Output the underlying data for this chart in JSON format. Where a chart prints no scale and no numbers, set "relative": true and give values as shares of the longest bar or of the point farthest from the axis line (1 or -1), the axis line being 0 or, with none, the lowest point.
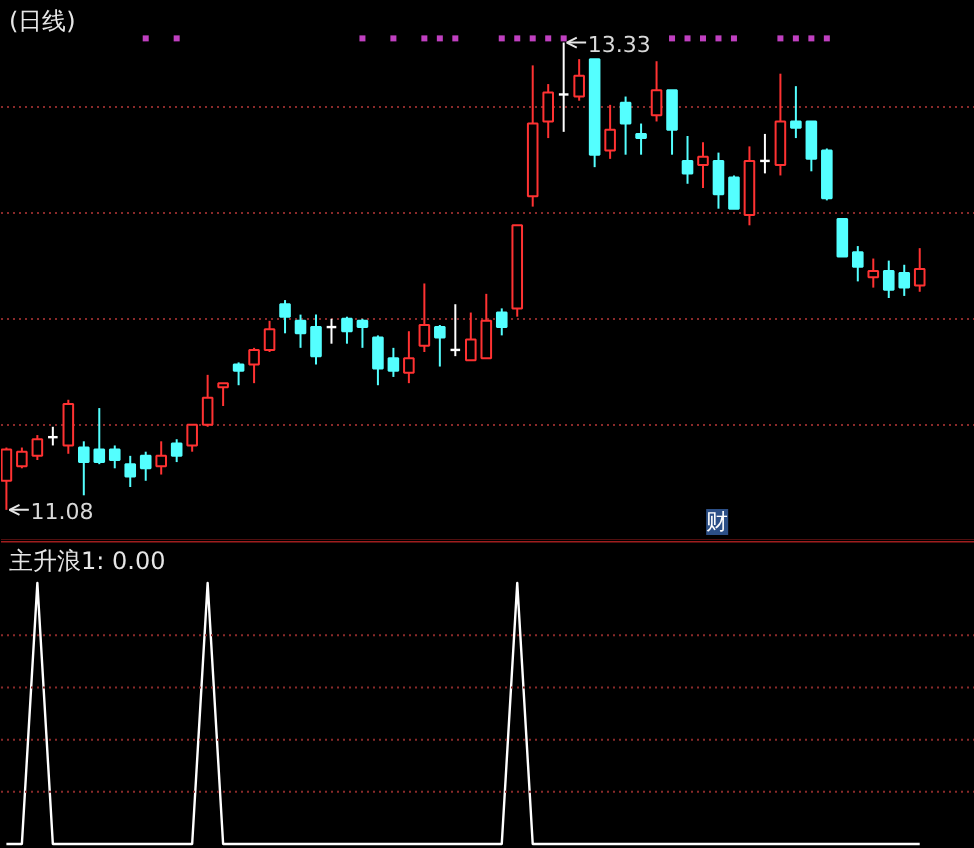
{
  "chart_data": [
    {
      "type": "candlestick",
      "title": "(日线)",
      "categories": [
        null,
        null,
        null,
        null,
        null,
        null,
        null,
        null,
        null,
        null,
        null,
        null,
        null,
        null,
        null,
        null,
        null,
        null,
        null,
        null,
        null,
        null,
        null,
        null,
        null,
        null,
        null,
        null,
        null,
        null,
        null,
        null,
        null,
        null,
        null,
        null,
        null,
        null,
        null,
        null,
        null,
        null,
        null,
        null,
        null,
        null,
        null,
        null,
        null,
        null,
        null,
        null,
        null,
        null,
        null,
        null,
        null,
        null,
        null,
        null
      ],
      "ohlc": [
        [
          11.22,
          11.38,
          11.08,
          11.37
        ],
        [
          11.29,
          11.38,
          11.28,
          11.36
        ],
        [
          11.34,
          11.44,
          11.32,
          11.42
        ],
        [
          11.43,
          11.48,
          11.39,
          11.43
        ],
        [
          11.39,
          11.61,
          11.35,
          11.59
        ],
        [
          11.38,
          11.41,
          11.15,
          11.31
        ],
        [
          11.37,
          11.57,
          11.3,
          11.31
        ],
        [
          11.37,
          11.39,
          11.28,
          11.32
        ],
        [
          11.3,
          11.34,
          11.19,
          11.24
        ],
        [
          11.34,
          11.36,
          11.22,
          11.28
        ],
        [
          11.29,
          11.41,
          11.25,
          11.34
        ],
        [
          11.4,
          11.42,
          11.31,
          11.34
        ],
        [
          11.39,
          11.49,
          11.36,
          11.49
        ],
        [
          11.49,
          11.73,
          11.48,
          11.62
        ],
        [
          11.67,
          11.69,
          11.58,
          11.69
        ],
        [
          11.78,
          11.79,
          11.68,
          11.75
        ],
        [
          11.78,
          11.86,
          11.69,
          11.85
        ],
        [
          11.85,
          11.99,
          11.84,
          11.95
        ],
        [
          12.07,
          12.09,
          11.93,
          12.01
        ],
        [
          11.99,
          12.02,
          11.86,
          11.93
        ],
        [
          11.96,
          12.02,
          11.78,
          11.82
        ],
        [
          11.96,
          12.0,
          11.88,
          11.96
        ],
        [
          12.0,
          12.01,
          11.88,
          11.94
        ],
        [
          11.99,
          12.0,
          11.86,
          11.96
        ],
        [
          11.91,
          11.92,
          11.68,
          11.76
        ],
        [
          11.81,
          11.86,
          11.72,
          11.75
        ],
        [
          11.74,
          11.94,
          11.69,
          11.81
        ],
        [
          11.87,
          12.17,
          11.84,
          11.97
        ],
        [
          11.96,
          11.97,
          11.77,
          11.91
        ],
        [
          11.85,
          12.07,
          11.82,
          11.85
        ],
        [
          11.8,
          12.03,
          11.8,
          11.9
        ],
        [
          11.81,
          12.12,
          11.81,
          11.99
        ],
        [
          12.03,
          12.05,
          11.92,
          11.96
        ],
        [
          12.05,
          12.45,
          12.01,
          12.45
        ],
        [
          12.59,
          13.22,
          12.54,
          12.94
        ],
        [
          12.95,
          13.13,
          12.87,
          13.09
        ],
        [
          13.08,
          13.33,
          12.9,
          13.08
        ],
        [
          13.07,
          13.25,
          13.05,
          13.17
        ],
        [
          13.25,
          13.25,
          12.73,
          12.79
        ],
        [
          12.81,
          13.03,
          12.77,
          12.91
        ],
        [
          13.04,
          13.07,
          12.79,
          12.94
        ],
        [
          12.89,
          12.94,
          12.79,
          12.87
        ],
        [
          12.98,
          13.24,
          12.95,
          13.1
        ],
        [
          13.1,
          13.1,
          12.79,
          12.91
        ],
        [
          12.76,
          12.88,
          12.65,
          12.7
        ],
        [
          12.74,
          12.85,
          12.63,
          12.78
        ],
        [
          12.76,
          12.8,
          12.53,
          12.6
        ],
        [
          12.68,
          12.69,
          12.53,
          12.53
        ],
        [
          12.5,
          12.83,
          12.45,
          12.76
        ],
        [
          12.76,
          12.89,
          12.7,
          12.76
        ],
        [
          12.74,
          13.18,
          12.69,
          12.95
        ],
        [
          12.95,
          13.12,
          12.87,
          12.92
        ],
        [
          12.95,
          12.95,
          12.71,
          12.77
        ],
        [
          12.81,
          12.82,
          12.57,
          12.58
        ],
        [
          12.48,
          12.48,
          12.3,
          12.3
        ],
        [
          12.32,
          12.35,
          12.18,
          12.25
        ],
        [
          12.2,
          12.29,
          12.15,
          12.23
        ],
        [
          12.23,
          12.28,
          12.1,
          12.14
        ],
        [
          12.22,
          12.26,
          12.11,
          12.15
        ],
        [
          12.16,
          12.34,
          12.13,
          12.24
        ]
      ],
      "colors": [
        "#ff3232",
        "#ff3232",
        "#ff3232",
        "#ffffff",
        "#ff3232",
        "#54ffff",
        "#54ffff",
        "#54ffff",
        "#54ffff",
        "#54ffff",
        "#ff3232",
        "#54ffff",
        "#ff3232",
        "#ff3232",
        "#ff3232",
        "#54ffff",
        "#ff3232",
        "#ff3232",
        "#54ffff",
        "#54ffff",
        "#54ffff",
        "#ffffff",
        "#54ffff",
        "#54ffff",
        "#54ffff",
        "#54ffff",
        "#ff3232",
        "#ff3232",
        "#54ffff",
        "#ffffff",
        "#ff3232",
        "#ff3232",
        "#54ffff",
        "#ff3232",
        "#ff3232",
        "#ff3232",
        "#ffffff",
        "#ff3232",
        "#54ffff",
        "#ff3232",
        "#54ffff",
        "#54ffff",
        "#ff3232",
        "#54ffff",
        "#54ffff",
        "#ff3232",
        "#54ffff",
        "#54ffff",
        "#ff3232",
        "#ffffff",
        "#ff3232",
        "#54ffff",
        "#54ffff",
        "#54ffff",
        "#54ffff",
        "#54ffff",
        "#ff3232",
        "#54ffff",
        "#54ffff",
        "#ff3232"
      ],
      "series": [
        {
          "type": "scatter",
          "marker": "square",
          "color": "#c040c0",
          "values": [
            null,
            null,
            null,
            null,
            null,
            null,
            null,
            null,
            null,
            13.35,
            null,
            13.35,
            null,
            null,
            null,
            null,
            null,
            null,
            null,
            null,
            null,
            null,
            null,
            13.35,
            null,
            13.35,
            null,
            13.35,
            13.35,
            13.35,
            null,
            null,
            13.35,
            13.35,
            13.35,
            13.35,
            13.35,
            null,
            null,
            null,
            null,
            null,
            null,
            13.35,
            13.35,
            13.35,
            13.35,
            13.35,
            null,
            null,
            13.35,
            13.35,
            13.35,
            13.35,
            null,
            null,
            null,
            null,
            null,
            null
          ]
        }
      ],
      "annotations": [
        "13.33",
        "11.08",
        "财"
      ],
      "ylim": [
        10.93,
        13.53
      ],
      "yticks": [
        {
          "value": 11.49,
          "label": null
        },
        {
          "value": 12.0,
          "label": null
        },
        {
          "value": 12.51,
          "label": null
        },
        {
          "value": 13.02,
          "label": null
        }
      ],
      "grid": "y",
      "tick_labels": false
    },
    {
      "type": "line",
      "title": "主升浪1: 0.00",
      "categories": [
        null,
        null,
        null,
        null,
        null,
        null,
        null,
        null,
        null,
        null,
        null,
        null,
        null,
        null,
        null,
        null,
        null,
        null,
        null,
        null,
        null,
        null,
        null,
        null,
        null,
        null,
        null,
        null,
        null,
        null,
        null,
        null,
        null,
        null,
        null,
        null,
        null,
        null,
        null,
        null,
        null,
        null,
        null,
        null,
        null,
        null,
        null,
        null,
        null,
        null,
        null,
        null,
        null,
        null,
        null,
        null,
        null,
        null,
        null,
        null
      ],
      "color": "#ffffff",
      "values": [
        0,
        0,
        1,
        0,
        0,
        0,
        0,
        0,
        0,
        0,
        0,
        0,
        0,
        1,
        0,
        0,
        0,
        0,
        0,
        0,
        0,
        0,
        0,
        0,
        0,
        0,
        0,
        0,
        0,
        0,
        0,
        0,
        0,
        1,
        0,
        0,
        0,
        0,
        0,
        0,
        0,
        0,
        0,
        0,
        0,
        0,
        0,
        0,
        0,
        0,
        0,
        0,
        0,
        0,
        0,
        0,
        0,
        0,
        0,
        0
      ],
      "ref_lines": [
        {
          "axis": "y",
          "value": 0.2,
          "color": "#8a2a2a",
          "line_style": "dotted"
        },
        {
          "axis": "y",
          "value": 0.4,
          "color": "#8a2a2a",
          "line_style": "dotted"
        },
        {
          "axis": "y",
          "value": 0.6,
          "color": "#8a2a2a",
          "line_style": "dotted"
        },
        {
          "axis": "y",
          "value": 0.8,
          "color": "#8a2a2a",
          "line_style": "dotted"
        }
      ],
      "relative": true,
      "tick_labels": false
    }
  ]
}
